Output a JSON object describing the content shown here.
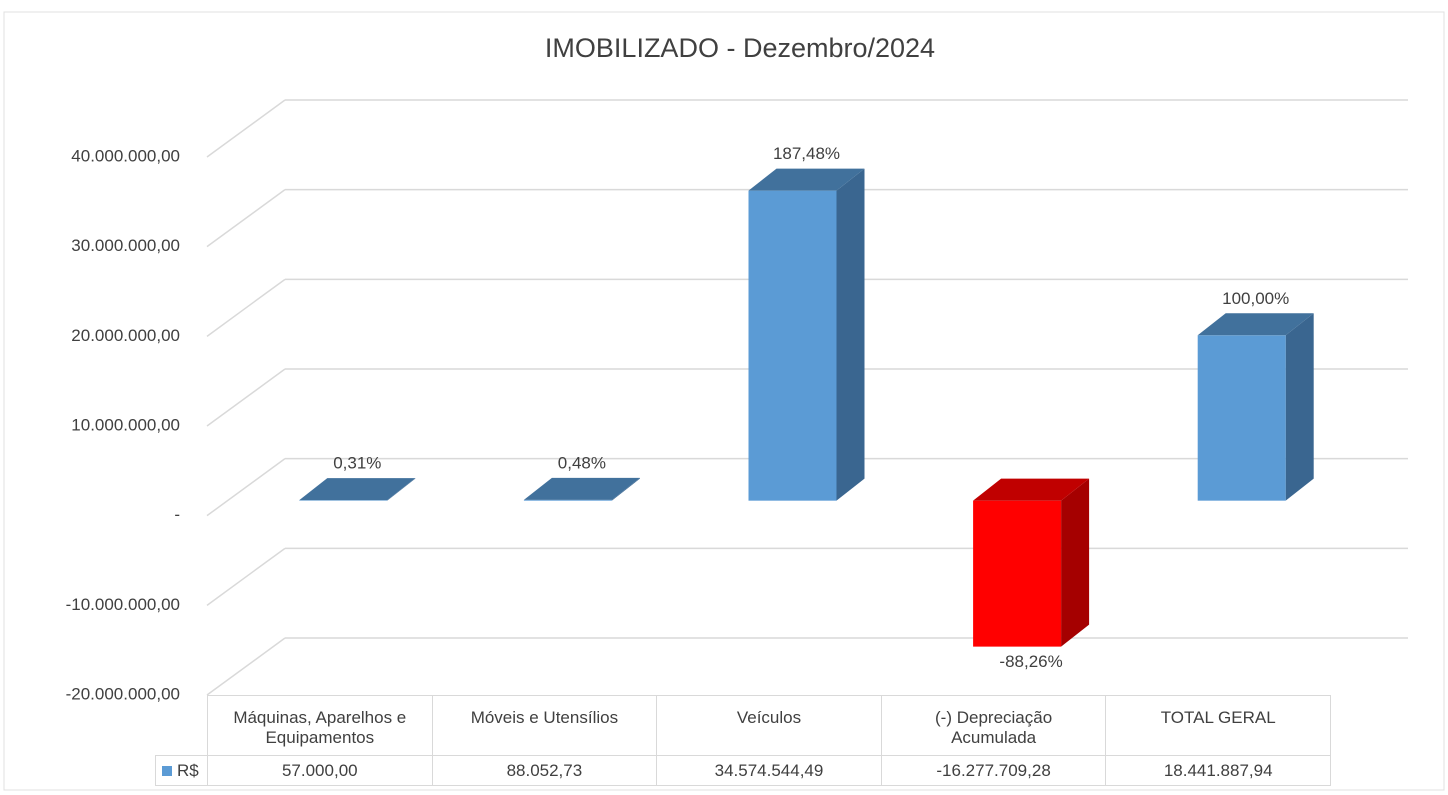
{
  "chart_data": {
    "type": "bar3d",
    "title": "IMOBILIZADO - Dezembro/2024",
    "categories": [
      "Máquinas, Aparelhos e Equipamentos",
      "Móveis e Utensílios",
      "Veículos",
      "(-) Depreciação Acumulada",
      "TOTAL GERAL"
    ],
    "series": [
      {
        "name": "R$",
        "color": "#5b9bd5",
        "negative_color": "#ff0000",
        "values": [
          57000,
          88052.73,
          34574544.49,
          -16277709.28,
          18441887.94
        ],
        "value_labels": [
          "57.000,00",
          "88.052,73",
          "34.574.544,49",
          "-16.277.709,28",
          "18.441.887,94"
        ],
        "shares": [
          0.31,
          0.48,
          187.48,
          -88.26,
          100
        ],
        "share_labels": [
          "0,31%",
          "0,48%",
          "187,48%",
          "-88,26%",
          "100,00%"
        ]
      }
    ],
    "ylim": [
      -20000000,
      40000000
    ],
    "yticks": [
      {
        "value": -20000000,
        "label": "-20.000.000,00"
      },
      {
        "value": -10000000,
        "label": "-10.000.000,00"
      },
      {
        "value": 0,
        "label": "-"
      },
      {
        "value": 10000000,
        "label": "10.000.000,00"
      },
      {
        "value": 20000000,
        "label": "20.000.000,00"
      },
      {
        "value": 30000000,
        "label": "30.000.000,00"
      },
      {
        "value": 40000000,
        "label": "40.000.000,00"
      }
    ],
    "grid": true,
    "data_table": true
  }
}
